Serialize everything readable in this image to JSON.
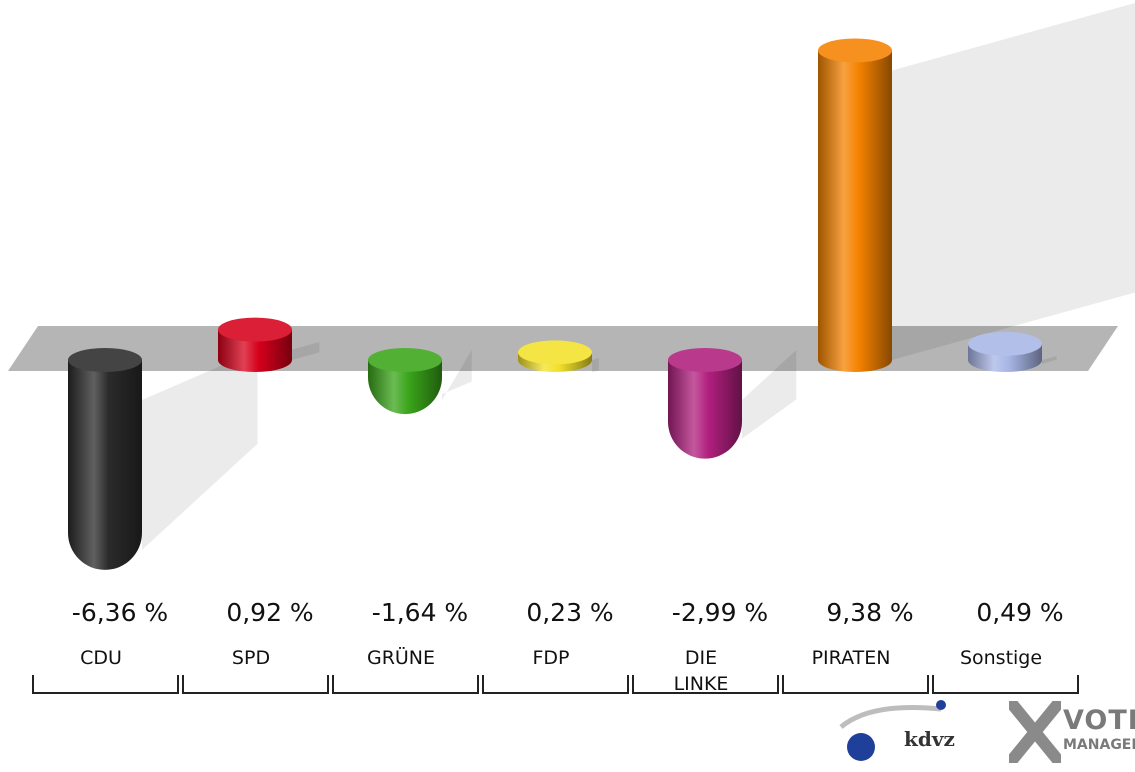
{
  "chart_data": {
    "type": "bar",
    "categories": [
      "CDU",
      "SPD",
      "GRÜNE",
      "FDP",
      "DIE LINKE",
      "PIRATEN",
      "Sonstige"
    ],
    "values": [
      -6.36,
      0.92,
      -1.64,
      0.23,
      -2.99,
      9.38,
      0.49
    ],
    "value_labels": [
      "-6,36 %",
      "0,92 %",
      "-1,64 %",
      "0,23 %",
      "-2,99 %",
      "9,38 %",
      "0,49 %"
    ],
    "colors": [
      "#2b2b2b",
      "#d6001b",
      "#3aa51a",
      "#f2e12a",
      "#b01f7e",
      "#f58200",
      "#a8b6e6"
    ],
    "title": "",
    "xlabel": "",
    "ylabel": "",
    "ylim": [
      -6.36,
      9.38
    ],
    "grid": false,
    "legend": "none",
    "style": "3d-cylinder"
  },
  "branding": {
    "kdvz": "kdvz",
    "vote": "VOTE",
    "manager": "MANAGER",
    "icons": [
      "kdvz-logo-icon",
      "vote-manager-x-icon"
    ]
  }
}
